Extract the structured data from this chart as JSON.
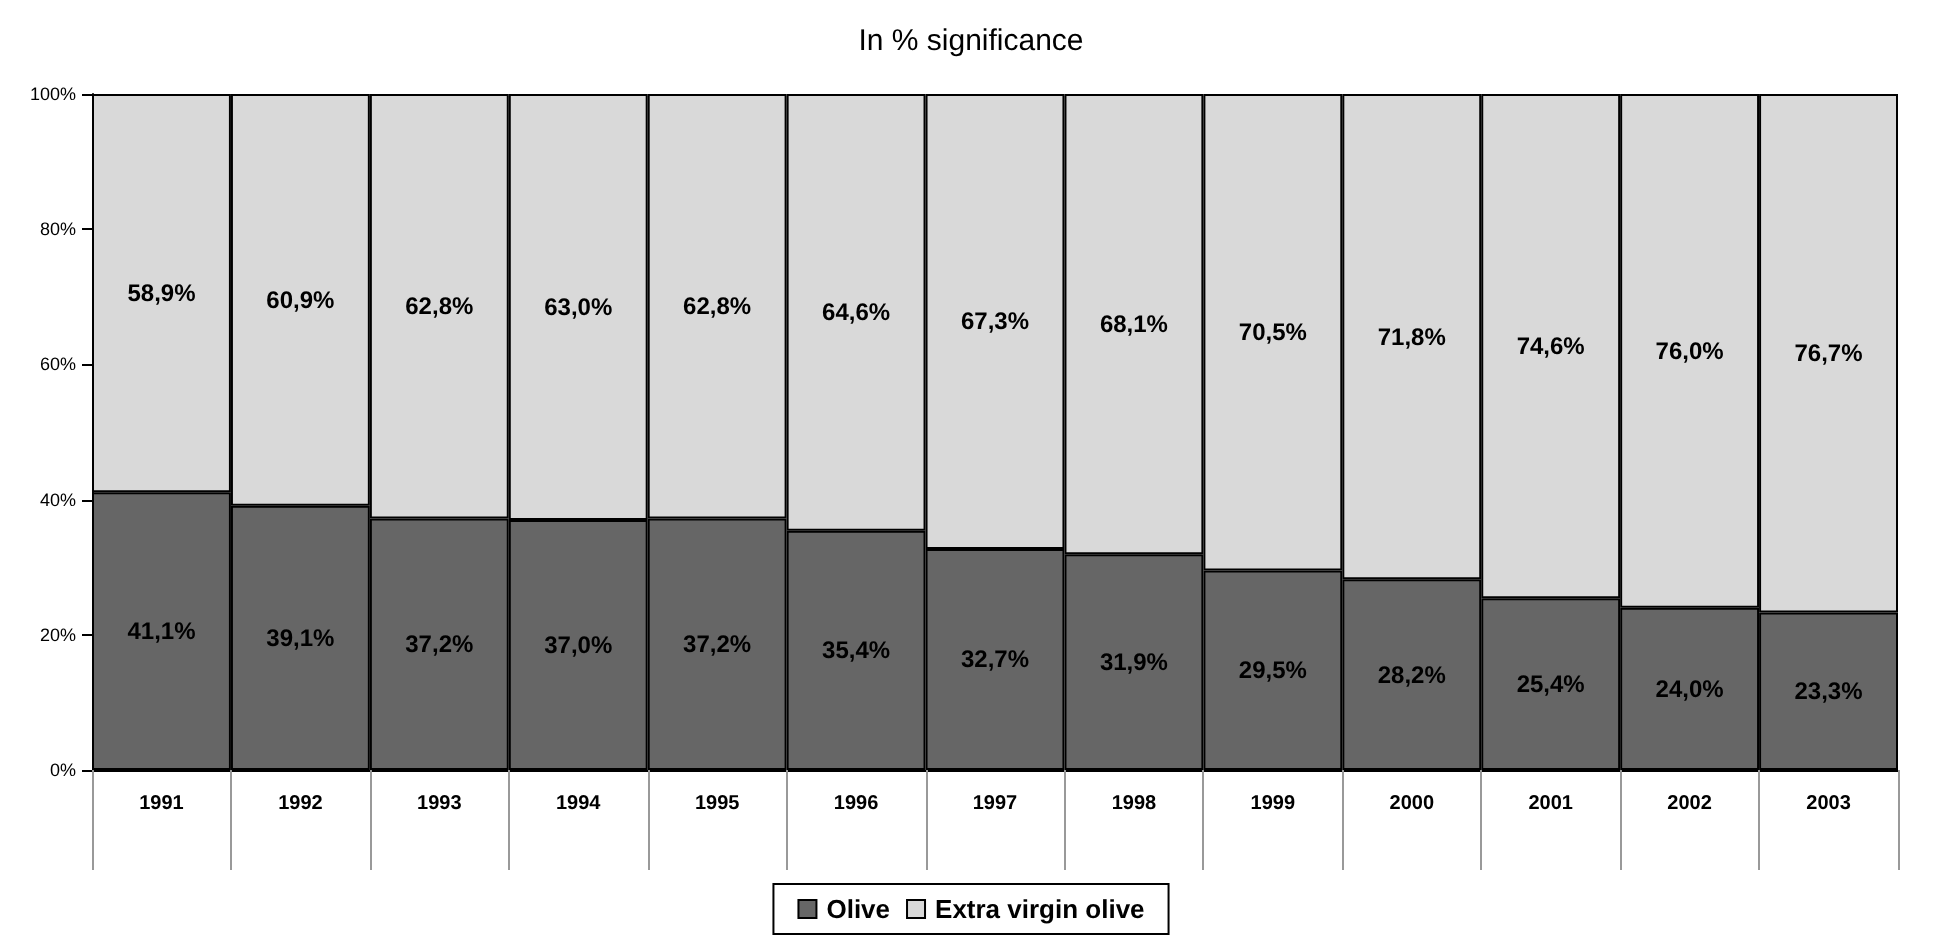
{
  "chart_data": {
    "type": "bar",
    "title": "In % significance",
    "stacked": true,
    "categories": [
      "1991",
      "1992",
      "1993",
      "1994",
      "1995",
      "1996",
      "1997",
      "1998",
      "1999",
      "2000",
      "2001",
      "2002",
      "2003"
    ],
    "series": [
      {
        "name": "Olive",
        "color": "#666666",
        "values": [
          41.1,
          39.1,
          37.2,
          37.0,
          37.2,
          35.4,
          32.7,
          31.9,
          29.5,
          28.2,
          25.4,
          24.0,
          23.3
        ],
        "value_labels": [
          "41,1%",
          "39,1%",
          "37,2%",
          "37,0%",
          "37,2%",
          "35,4%",
          "32,7%",
          "31,9%",
          "29,5%",
          "28,2%",
          "25,4%",
          "24,0%",
          "23,3%"
        ]
      },
      {
        "name": "Extra virgin olive",
        "color": "#d9d9d9",
        "values": [
          58.9,
          60.9,
          62.8,
          63.0,
          62.8,
          64.6,
          67.3,
          68.1,
          70.5,
          71.8,
          74.6,
          76.0,
          76.7
        ],
        "value_labels": [
          "58,9%",
          "60,9%",
          "62,8%",
          "63,0%",
          "62,8%",
          "64,6%",
          "67,3%",
          "68,1%",
          "70,5%",
          "71,8%",
          "74,6%",
          "76,0%",
          "76,7%"
        ]
      }
    ],
    "ylim": [
      0,
      100
    ],
    "yticks": [
      {
        "value": 0,
        "label": "0%"
      },
      {
        "value": 20,
        "label": "20%"
      },
      {
        "value": 40,
        "label": "40%"
      },
      {
        "value": 60,
        "label": "60%"
      },
      {
        "value": 80,
        "label": "80%"
      },
      {
        "value": 100,
        "label": "100%"
      }
    ],
    "grid": false,
    "legend": "bottom"
  }
}
